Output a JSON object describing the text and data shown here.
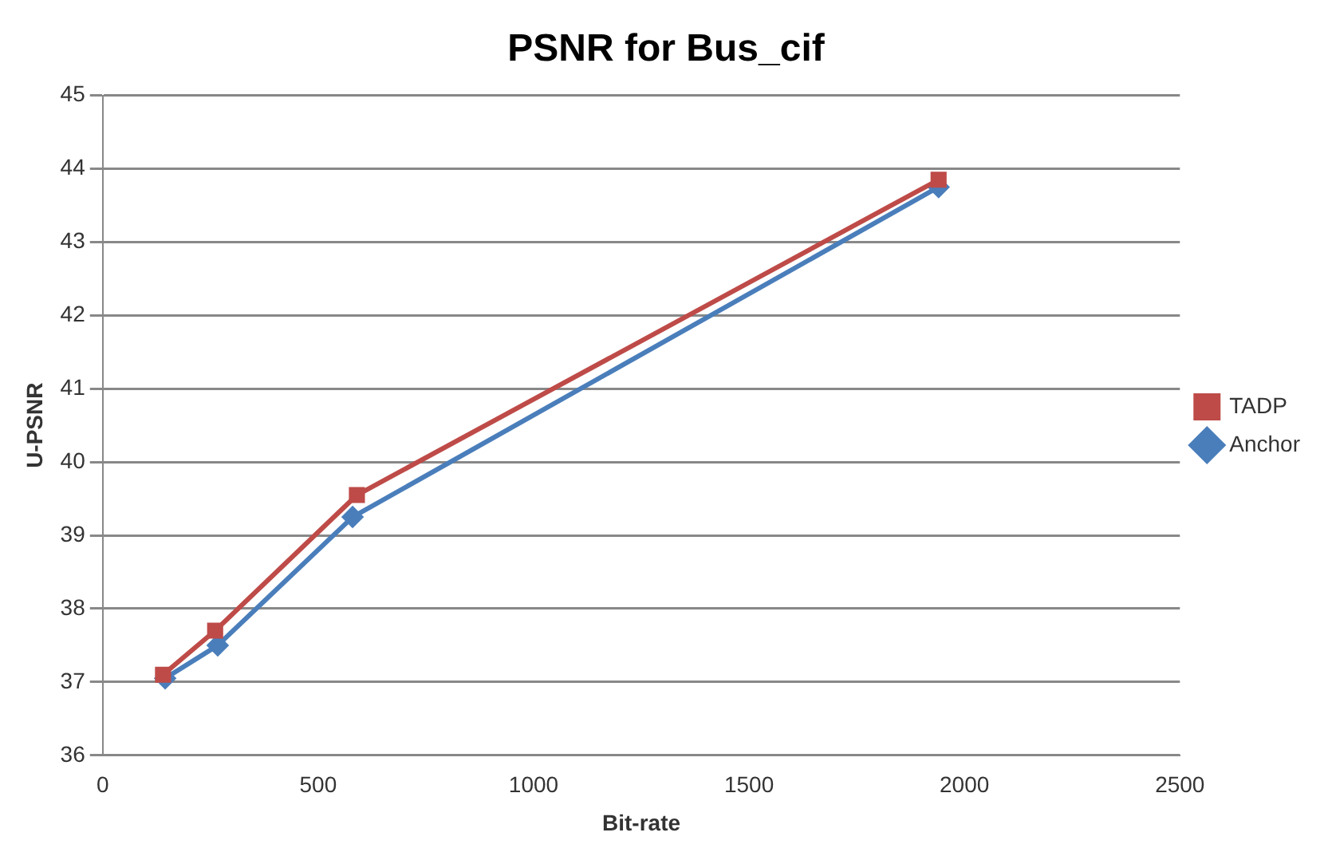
{
  "chart_data": {
    "type": "line",
    "title": "PSNR for Bus_cif",
    "xlabel": "Bit-rate",
    "ylabel": "U-PSNR",
    "xlim": [
      0,
      2500
    ],
    "xticks": [
      0,
      500,
      1000,
      1500,
      2000,
      2500
    ],
    "ylim": [
      36,
      45
    ],
    "yticks": [
      36,
      37,
      38,
      39,
      40,
      41,
      42,
      43,
      44,
      45
    ],
    "grid": "y",
    "legend": "right",
    "series": [
      {
        "name": "Anchor",
        "color": "#4a7ebb",
        "marker": "diamond",
        "x": [
          145,
          267,
          580,
          1940
        ],
        "values": [
          37.05,
          37.5,
          39.25,
          43.75
        ]
      },
      {
        "name": "TADP",
        "color": "#be4b48",
        "marker": "square",
        "x": [
          140,
          261,
          590,
          1940
        ],
        "values": [
          37.1,
          37.7,
          39.55,
          43.85
        ]
      }
    ]
  }
}
